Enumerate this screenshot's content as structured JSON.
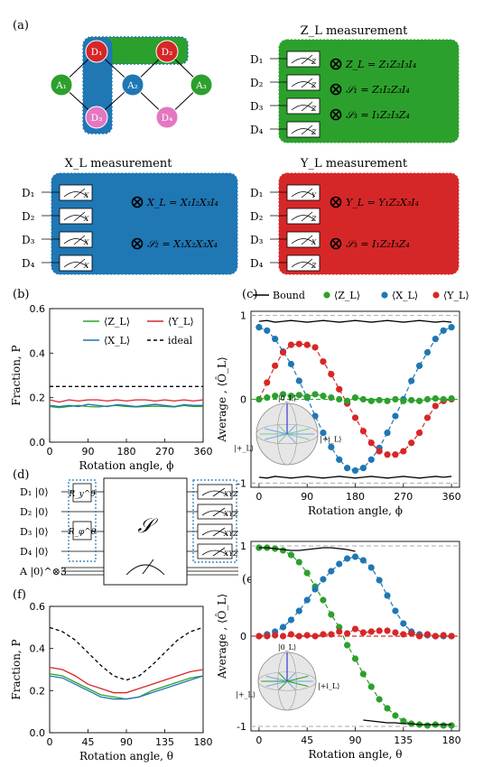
{
  "panels": {
    "a": "(a)",
    "b": "(b)",
    "c": "(c)",
    "d": "(d)",
    "e": "(e)",
    "f": "(f)"
  },
  "lattice": {
    "nodes": [
      {
        "id": "D1",
        "label": "D₁",
        "color": "#d62728"
      },
      {
        "id": "D2",
        "label": "D₂",
        "color": "#d62728"
      },
      {
        "id": "D3",
        "label": "D₃",
        "color": "#e377c2"
      },
      {
        "id": "D4",
        "label": "D₄",
        "color": "#e377c2"
      },
      {
        "id": "A1",
        "label": "A₁",
        "color": "#2ca02c"
      },
      {
        "id": "A2",
        "label": "A₂",
        "color": "#1f77b4"
      },
      {
        "id": "A3",
        "label": "A₃",
        "color": "#2ca02c"
      }
    ]
  },
  "measurements": {
    "Z": {
      "title": "Z_L measurement",
      "color": "#2ca02c",
      "basis": "Z",
      "qubits": [
        "D₁",
        "D₂",
        "D₃",
        "D₄"
      ],
      "eq1": "Z_L = Z₁Z₂I₃I₄",
      "eq2": "𝒮₁ = Z₁I₂Z₃I₄",
      "eq3": "𝒮₃ = I₁Z₂I₃Z₄"
    },
    "X": {
      "title": "X_L measurement",
      "color": "#1f77b4",
      "basis": "X",
      "qubits": [
        "D₁",
        "D₂",
        "D₃",
        "D₄"
      ],
      "eq1": "X_L = X₁I₂X₃I₄",
      "eq2": "𝒮₂ = X₁X₂X₃X₄"
    },
    "Y": {
      "title": "Y_L measurement",
      "color": "#d62728",
      "basis_first": "Y",
      "basis": "Z",
      "qubits": [
        "D₁",
        "D₂",
        "D₃",
        "D₄"
      ],
      "eq1": "Y_L = Y₁Z₂X₃I₄",
      "eq2": "𝒮₃ = I₁Z₂I₃Z₄"
    }
  },
  "plot_b": {
    "ylabel": "Fraction, P",
    "xlabel": "Rotation angle, ϕ",
    "xticks": [
      "0",
      "90",
      "180",
      "270",
      "360"
    ],
    "yticks": [
      "0.0",
      "0.2",
      "0.4",
      "0.6"
    ],
    "legend": [
      "⟨Z_L⟩",
      "⟨Y_L⟩",
      "⟨X_L⟩",
      "ideal"
    ]
  },
  "plot_c": {
    "ylabel": "Average , ⟨Ô_L⟩",
    "xlabel": "Rotation angle, ϕ",
    "xticks": [
      "0",
      "90",
      "180",
      "270",
      "360"
    ],
    "yticks": [
      "1",
      "0",
      "-1"
    ],
    "legend": [
      "Bound",
      "⟨Z_L⟩",
      "⟨X_L⟩",
      "⟨Y_L⟩"
    ],
    "sphere": {
      "top": "|0_L⟩",
      "left": "|+_L⟩",
      "right": "|+i_L⟩"
    }
  },
  "circuit": {
    "rows": [
      "D₁ |0⟩",
      "D₂ |0⟩",
      "D₃ |0⟩",
      "D₄ |0⟩",
      "A |0⟩^⊗3"
    ],
    "gate1": "R_y^θ",
    "gate2": "R_φ^θ",
    "stab": "𝒮",
    "meas": "XYZ"
  },
  "plot_e": {
    "ylabel": "Average , ⟨Ô_L⟩",
    "xlabel": "Rotation angle, θ",
    "xticks": [
      "0",
      "45",
      "90",
      "135",
      "180"
    ],
    "yticks": [
      "1",
      "0",
      "-1"
    ],
    "sphere": {
      "top": "|0_L⟩",
      "left": "|+_L⟩",
      "right": "|+i_L⟩"
    }
  },
  "plot_f": {
    "ylabel": "Fraction, P",
    "xlabel": "Rotation angle, θ",
    "xticks": [
      "0",
      "45",
      "90",
      "135",
      "180"
    ],
    "yticks": [
      "0.0",
      "0.2",
      "0.4",
      "0.6"
    ]
  },
  "chart_data": [
    {
      "type": "line",
      "title": "",
      "xlabel": "Rotation angle, ϕ",
      "ylabel": "Fraction, P",
      "xlim": [
        0,
        360
      ],
      "ylim": [
        0,
        0.6
      ],
      "x": [
        0,
        22.5,
        45,
        67.5,
        90,
        112.5,
        135,
        157.5,
        180,
        202.5,
        225,
        247.5,
        270,
        292.5,
        315,
        337.5,
        360
      ],
      "series": [
        {
          "name": "⟨Z_L⟩",
          "color": "#2ca02c",
          "values": [
            0.16,
            0.155,
            0.16,
            0.165,
            0.16,
            0.158,
            0.162,
            0.165,
            0.16,
            0.158,
            0.16,
            0.162,
            0.16,
            0.158,
            0.165,
            0.16,
            0.16
          ]
        },
        {
          "name": "⟨Y_L⟩",
          "color": "#d62728",
          "values": [
            0.19,
            0.18,
            0.19,
            0.185,
            0.19,
            0.19,
            0.185,
            0.19,
            0.185,
            0.19,
            0.19,
            0.185,
            0.19,
            0.185,
            0.19,
            0.185,
            0.19
          ]
        },
        {
          "name": "⟨X_L⟩",
          "color": "#1f77b4",
          "values": [
            0.165,
            0.16,
            0.165,
            0.16,
            0.17,
            0.165,
            0.16,
            0.168,
            0.165,
            0.16,
            0.165,
            0.17,
            0.165,
            0.16,
            0.168,
            0.165,
            0.165
          ]
        },
        {
          "name": "ideal",
          "color": "#000000",
          "dashed": true,
          "values": [
            0.25,
            0.25,
            0.25,
            0.25,
            0.25,
            0.25,
            0.25,
            0.25,
            0.25,
            0.25,
            0.25,
            0.25,
            0.25,
            0.25,
            0.25,
            0.25,
            0.25
          ]
        }
      ]
    },
    {
      "type": "scatter",
      "title": "",
      "xlabel": "Rotation angle, ϕ",
      "ylabel": "Average , ⟨Ô_L⟩",
      "xlim": [
        -15,
        375
      ],
      "ylim": [
        -1.05,
        1.05
      ],
      "x": [
        0,
        15,
        30,
        45,
        60,
        75,
        90,
        105,
        120,
        135,
        150,
        165,
        180,
        195,
        210,
        225,
        240,
        255,
        270,
        285,
        300,
        315,
        330,
        345,
        360
      ],
      "series": [
        {
          "name": "⟨X_L⟩",
          "color": "#1f77b4",
          "values": [
            0.86,
            0.82,
            0.72,
            0.57,
            0.42,
            0.22,
            0.02,
            -0.2,
            -0.4,
            -0.57,
            -0.72,
            -0.82,
            -0.85,
            -0.82,
            -0.72,
            -0.58,
            -0.4,
            -0.2,
            0.0,
            0.22,
            0.4,
            0.56,
            0.72,
            0.82,
            0.86
          ]
        },
        {
          "name": "⟨Y_L⟩",
          "color": "#d62728",
          "values": [
            0.0,
            0.2,
            0.4,
            0.56,
            0.65,
            0.66,
            0.65,
            0.62,
            0.45,
            0.3,
            0.12,
            -0.05,
            -0.22,
            -0.38,
            -0.52,
            -0.62,
            -0.66,
            -0.66,
            -0.62,
            -0.52,
            -0.4,
            -0.22,
            -0.08,
            -0.02,
            0.0
          ]
        },
        {
          "name": "⟨Z_L⟩",
          "color": "#2ca02c",
          "values": [
            0.0,
            0.02,
            0.04,
            0.06,
            0.04,
            0.05,
            0.03,
            0.06,
            0.04,
            0.02,
            0.0,
            -0.02,
            0.02,
            0.0,
            -0.02,
            -0.01,
            -0.02,
            0.0,
            -0.02,
            -0.01,
            -0.02,
            0.0,
            0.01,
            0.0,
            0.01
          ]
        },
        {
          "name": "Bound",
          "color": "#000000",
          "values": [
            0.93,
            0.94,
            0.92,
            0.93,
            0.94,
            0.93,
            0.92,
            0.93,
            0.94,
            0.93,
            0.92,
            0.93,
            0.94,
            0.93,
            0.92,
            0.93,
            0.94,
            0.93,
            0.92,
            0.93,
            0.94,
            0.93,
            0.92,
            0.93,
            0.92
          ]
        }
      ]
    },
    {
      "type": "scatter",
      "title": "",
      "xlabel": "Rotation angle, θ",
      "ylabel": "Average , ⟨Ô_L⟩",
      "xlim": [
        -7.5,
        187.5
      ],
      "ylim": [
        -1.05,
        1.05
      ],
      "x": [
        0,
        7.5,
        15,
        22.5,
        30,
        37.5,
        45,
        52.5,
        60,
        67.5,
        75,
        82.5,
        90,
        97.5,
        105,
        112.5,
        120,
        127.5,
        135,
        142.5,
        150,
        157.5,
        165,
        172.5,
        180
      ],
      "series": [
        {
          "name": "⟨Z_L⟩",
          "color": "#2ca02c",
          "values": [
            0.98,
            0.98,
            0.97,
            0.95,
            0.9,
            0.82,
            0.7,
            0.55,
            0.4,
            0.24,
            0.1,
            -0.1,
            -0.25,
            -0.42,
            -0.56,
            -0.7,
            -0.8,
            -0.88,
            -0.94,
            -0.97,
            -0.98,
            -0.99,
            -0.98,
            -0.99,
            -0.99
          ]
        },
        {
          "name": "⟨X_L⟩",
          "color": "#1f77b4",
          "values": [
            0.0,
            0.02,
            0.05,
            0.1,
            0.18,
            0.28,
            0.4,
            0.52,
            0.63,
            0.72,
            0.8,
            0.86,
            0.88,
            0.84,
            0.76,
            0.62,
            0.45,
            0.28,
            0.14,
            0.05,
            0.02,
            0.01,
            0.0,
            0.0,
            0.0
          ]
        },
        {
          "name": "⟨Y_L⟩",
          "color": "#d62728",
          "values": [
            0.0,
            0.0,
            0.01,
            0.0,
            0.02,
            0.0,
            0.01,
            0.0,
            0.02,
            0.02,
            0.05,
            0.03,
            0.08,
            0.04,
            0.05,
            0.06,
            0.06,
            0.04,
            0.02,
            0.03,
            0.0,
            0.02,
            0.0,
            0.01,
            0.0
          ]
        },
        {
          "name": "Bound",
          "color": "#000000",
          "values": [
            0.98,
            0.98,
            0.97,
            0.96,
            0.95,
            0.95,
            0.96,
            0.97,
            0.98,
            0.98,
            0.97,
            0.96,
            0.94,
            -0.93,
            -0.94,
            -0.95,
            -0.96,
            -0.96,
            -0.97,
            -0.97,
            -0.98,
            -0.98,
            -0.98,
            -0.98,
            -0.98
          ]
        }
      ]
    },
    {
      "type": "line",
      "title": "",
      "xlabel": "Rotation angle, θ",
      "ylabel": "Fraction, P",
      "xlim": [
        0,
        180
      ],
      "ylim": [
        0,
        0.6
      ],
      "x": [
        0,
        15,
        30,
        45,
        60,
        75,
        90,
        105,
        120,
        135,
        150,
        165,
        180
      ],
      "series": [
        {
          "name": "ideal",
          "color": "#000000",
          "dashed": true,
          "values": [
            0.5,
            0.48,
            0.44,
            0.38,
            0.32,
            0.27,
            0.25,
            0.27,
            0.32,
            0.38,
            0.44,
            0.48,
            0.5
          ]
        },
        {
          "name": "⟨Y_L⟩",
          "color": "#d62728",
          "values": [
            0.31,
            0.3,
            0.27,
            0.23,
            0.21,
            0.19,
            0.19,
            0.21,
            0.23,
            0.25,
            0.27,
            0.29,
            0.3
          ]
        },
        {
          "name": "⟨Z_L⟩",
          "color": "#2ca02c",
          "values": [
            0.28,
            0.27,
            0.24,
            0.21,
            0.18,
            0.17,
            0.16,
            0.17,
            0.2,
            0.22,
            0.24,
            0.26,
            0.27
          ]
        },
        {
          "name": "⟨X_L⟩",
          "color": "#1f77b4",
          "values": [
            0.27,
            0.26,
            0.23,
            0.2,
            0.17,
            0.16,
            0.16,
            0.17,
            0.19,
            0.21,
            0.23,
            0.25,
            0.27
          ]
        }
      ]
    }
  ]
}
